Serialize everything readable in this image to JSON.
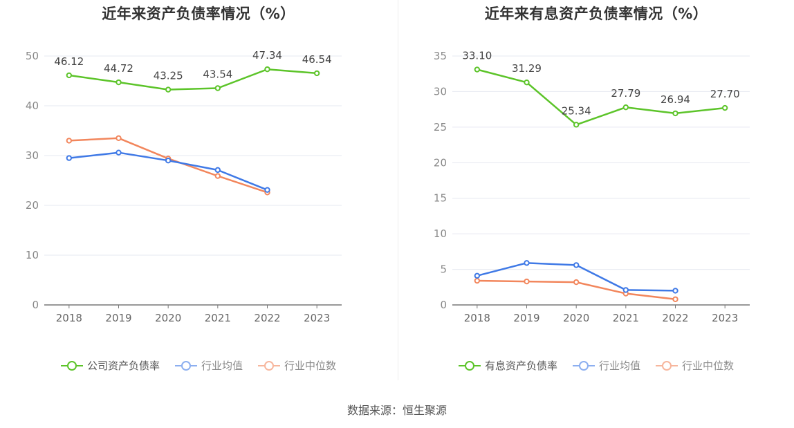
{
  "chart_data": [
    {
      "type": "line",
      "title": "近年来资产负债率情况（%）",
      "categories": [
        "2018",
        "2019",
        "2020",
        "2021",
        "2022",
        "2023"
      ],
      "ylim": [
        0,
        50
      ],
      "yticks": [
        0,
        10,
        20,
        30,
        40,
        50
      ],
      "grid": true,
      "legend_position": "bottom",
      "series": [
        {
          "name": "公司资产负债率",
          "color": "#5cc429",
          "values": [
            46.12,
            44.72,
            43.25,
            43.54,
            47.34,
            46.54
          ],
          "labels": [
            "46.12",
            "44.72",
            "43.25",
            "43.54",
            "47.34",
            "46.54"
          ]
        },
        {
          "name": "行业均值",
          "color": "#3f79e6",
          "values": [
            29.5,
            30.6,
            29.0,
            27.1,
            23.1,
            null
          ]
        },
        {
          "name": "行业中位数",
          "color": "#f2865c",
          "values": [
            33.0,
            33.5,
            29.4,
            25.9,
            22.6,
            null
          ]
        }
      ]
    },
    {
      "type": "line",
      "title": "近年来有息资产负债率情况（%）",
      "categories": [
        "2018",
        "2019",
        "2020",
        "2021",
        "2022",
        "2023"
      ],
      "ylim": [
        0,
        35
      ],
      "yticks": [
        0,
        5,
        10,
        15,
        20,
        25,
        30,
        35
      ],
      "grid": true,
      "legend_position": "bottom",
      "series": [
        {
          "name": "有息资产负债率",
          "color": "#5cc429",
          "values": [
            33.1,
            31.29,
            25.34,
            27.79,
            26.94,
            27.7
          ],
          "labels": [
            "33.10",
            "31.29",
            "25.34",
            "27.79",
            "26.94",
            "27.70"
          ]
        },
        {
          "name": "行业均值",
          "color": "#3f79e6",
          "values": [
            4.1,
            5.9,
            5.6,
            2.1,
            2.0,
            null
          ]
        },
        {
          "name": "行业中位数",
          "color": "#f2865c",
          "values": [
            3.4,
            3.3,
            3.2,
            1.6,
            0.8,
            null
          ]
        }
      ]
    }
  ],
  "source_text": "数据来源：恒生聚源"
}
